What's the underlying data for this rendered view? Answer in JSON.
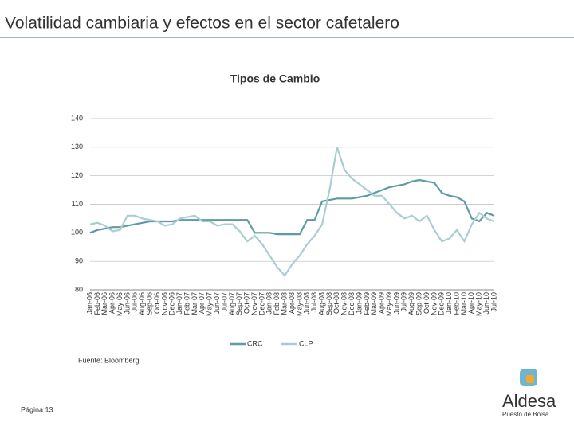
{
  "slide": {
    "title": "Volatilidad cambiaria y efectos en el sector cafetalero",
    "source": "Fuente: Bloomberg.",
    "page": "Página 13",
    "logo": {
      "name": "Aldesa",
      "tagline": "Puesto de Bolsa"
    }
  },
  "chart_data": {
    "type": "line",
    "title": "Tipos de Cambio",
    "categories": [
      "Jan-06",
      "Feb-06",
      "Mar-06",
      "Apr-06",
      "May-06",
      "Jun-06",
      "Jul-06",
      "Aug-06",
      "Sep-06",
      "Oct-06",
      "Nov-06",
      "Dec-06",
      "Jan-07",
      "Feb-07",
      "Mar-07",
      "Apr-07",
      "May-07",
      "Jun-07",
      "Jul-07",
      "Aug-07",
      "Sep-07",
      "Oct-07",
      "Nov-07",
      "Dec-07",
      "Jan-08",
      "Feb-08",
      "Mar-08",
      "Apr-08",
      "May-08",
      "Jun-08",
      "Jul-08",
      "Aug-08",
      "Sep-08",
      "Oct-08",
      "Nov-08",
      "Dec-08",
      "Jan-09",
      "Feb-09",
      "Mar-09",
      "Apr-09",
      "May-09",
      "Jun-09",
      "Jul-09",
      "Aug-09",
      "Sep-09",
      "Oct-09",
      "Nov-09",
      "Dec-09",
      "Jan-10",
      "Feb-10",
      "Mar-10",
      "Apr-10",
      "May-10",
      "Jun-10",
      "Jul-10"
    ],
    "series": [
      {
        "name": "CRC",
        "color": "#5e9ba2",
        "values": [
          100,
          101,
          101.5,
          102,
          102,
          102.5,
          103,
          103.5,
          104,
          104,
          104,
          104,
          104.5,
          104.5,
          104.5,
          104.5,
          104.5,
          104.5,
          104.5,
          104.5,
          104.5,
          104.5,
          100,
          100,
          100,
          99.5,
          99.5,
          99.5,
          99.5,
          104.5,
          104.5,
          111,
          111.5,
          112,
          112,
          112,
          112.5,
          113,
          114,
          115,
          116,
          116.5,
          117,
          118,
          118.5,
          118,
          117.5,
          114,
          113,
          112.5,
          111,
          105,
          104,
          107,
          106
        ]
      },
      {
        "name": "CLP",
        "color": "#a9cdd3",
        "values": [
          103,
          103.5,
          102.5,
          100.5,
          101,
          106,
          106,
          105,
          104.5,
          104,
          102.5,
          103,
          105,
          105.5,
          106,
          104,
          104,
          102.5,
          103,
          103,
          100.5,
          97,
          99,
          96,
          92,
          88,
          85,
          89,
          92,
          96,
          99,
          103,
          115,
          130,
          122,
          119,
          117,
          115,
          113,
          113,
          110,
          107,
          105,
          106,
          104,
          106,
          101,
          97,
          98,
          101,
          97,
          103,
          107,
          105,
          104
        ]
      }
    ],
    "ylim": [
      80,
      140
    ],
    "yticks": [
      80,
      90,
      100,
      110,
      120,
      130,
      140
    ],
    "grid": true,
    "legend": "bottom"
  }
}
